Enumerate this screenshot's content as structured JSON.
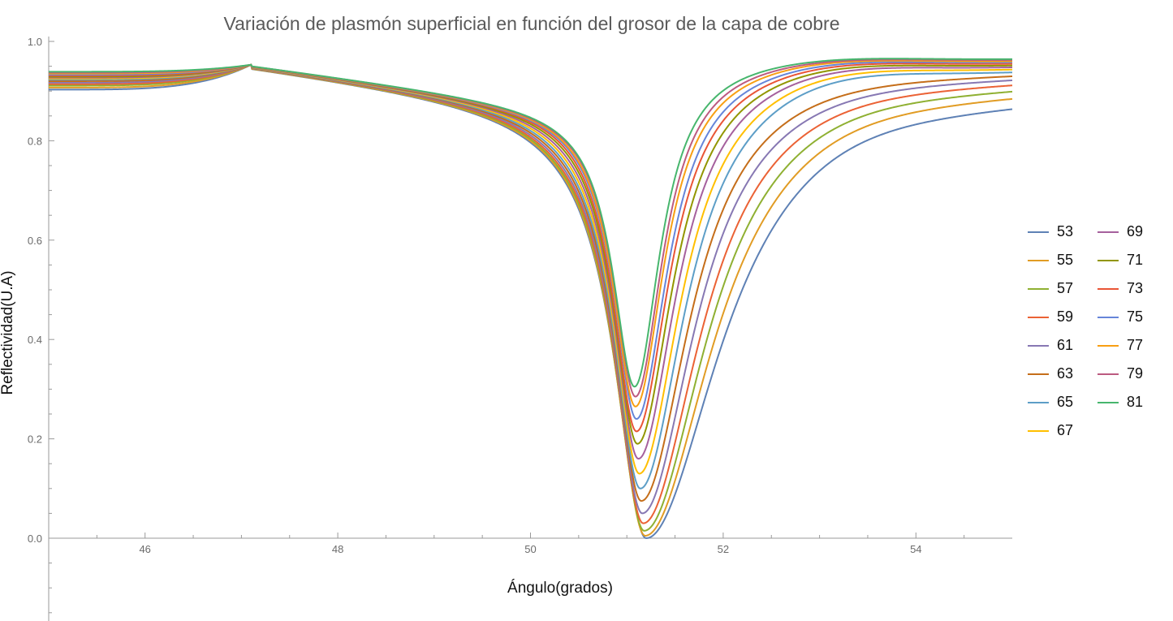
{
  "chart_data": {
    "type": "line",
    "title": "Variación de plasmón superficial en función del grosor de la capa de cobre",
    "xlabel": "Ángulo(grados)",
    "ylabel": "Reflectividad(U.A)",
    "xlim": [
      45,
      55
    ],
    "ylim": [
      -0.16,
      1.0
    ],
    "x_ticks": [
      "46",
      "48",
      "50",
      "52",
      "54"
    ],
    "y_ticks": [
      "0.0",
      "0.2",
      "0.4",
      "0.6",
      "0.8",
      "1.0"
    ],
    "x_tick_values": [
      46,
      48,
      50,
      52,
      54
    ],
    "y_tick_values": [
      0.0,
      0.2,
      0.4,
      0.6,
      0.8,
      1.0
    ],
    "grid": false,
    "legend_position": "right",
    "series": [
      {
        "name": "53",
        "color": "#5e81b5",
        "rmin": 0.0,
        "theta_min": 51.2,
        "left_w": 0.39,
        "right_w": 0.92,
        "plateau_left": 0.903,
        "far_right": 0.913
      },
      {
        "name": "55",
        "color": "#e19c24",
        "rmin": 0.005,
        "theta_min": 51.19,
        "left_w": 0.38,
        "right_w": 0.84,
        "plateau_left": 0.907,
        "far_right": 0.926
      },
      {
        "name": "57",
        "color": "#8fb032",
        "rmin": 0.015,
        "theta_min": 51.18,
        "left_w": 0.37,
        "right_w": 0.77,
        "plateau_left": 0.911,
        "far_right": 0.934
      },
      {
        "name": "59",
        "color": "#eb6235",
        "rmin": 0.03,
        "theta_min": 51.17,
        "left_w": 0.36,
        "right_w": 0.71,
        "plateau_left": 0.914,
        "far_right": 0.941
      },
      {
        "name": "61",
        "color": "#8778b3",
        "rmin": 0.05,
        "theta_min": 51.16,
        "left_w": 0.35,
        "right_w": 0.65,
        "plateau_left": 0.917,
        "far_right": 0.946
      },
      {
        "name": "63",
        "color": "#c56e1a",
        "rmin": 0.075,
        "theta_min": 51.15,
        "left_w": 0.34,
        "right_w": 0.6,
        "plateau_left": 0.92,
        "far_right": 0.95
      },
      {
        "name": "65",
        "color": "#5d9ec7",
        "rmin": 0.1,
        "theta_min": 51.14,
        "left_w": 0.33,
        "right_w": 0.55,
        "plateau_left": 0.923,
        "far_right": 0.953
      },
      {
        "name": "67",
        "color": "#ffbf00",
        "rmin": 0.13,
        "theta_min": 51.13,
        "left_w": 0.32,
        "right_w": 0.51,
        "plateau_left": 0.925,
        "far_right": 0.956
      },
      {
        "name": "69",
        "color": "#a5609d",
        "rmin": 0.16,
        "theta_min": 51.12,
        "left_w": 0.31,
        "right_w": 0.47,
        "plateau_left": 0.927,
        "far_right": 0.958
      },
      {
        "name": "71",
        "color": "#929600",
        "rmin": 0.19,
        "theta_min": 51.11,
        "left_w": 0.3,
        "right_w": 0.44,
        "plateau_left": 0.929,
        "far_right": 0.96
      },
      {
        "name": "73",
        "color": "#e95536",
        "rmin": 0.215,
        "theta_min": 51.1,
        "left_w": 0.29,
        "right_w": 0.41,
        "plateau_left": 0.931,
        "far_right": 0.962
      },
      {
        "name": "75",
        "color": "#6685d9",
        "rmin": 0.24,
        "theta_min": 51.1,
        "left_w": 0.285,
        "right_w": 0.385,
        "plateau_left": 0.933,
        "far_right": 0.964
      },
      {
        "name": "77",
        "color": "#f89f13",
        "rmin": 0.265,
        "theta_min": 51.09,
        "left_w": 0.28,
        "right_w": 0.36,
        "plateau_left": 0.935,
        "far_right": 0.965
      },
      {
        "name": "79",
        "color": "#bc5b80",
        "rmin": 0.285,
        "theta_min": 51.09,
        "left_w": 0.275,
        "right_w": 0.34,
        "plateau_left": 0.937,
        "far_right": 0.967
      },
      {
        "name": "81",
        "color": "#47b66d",
        "rmin": 0.305,
        "theta_min": 51.08,
        "left_w": 0.27,
        "right_w": 0.32,
        "plateau_left": 0.939,
        "far_right": 0.968
      }
    ]
  }
}
